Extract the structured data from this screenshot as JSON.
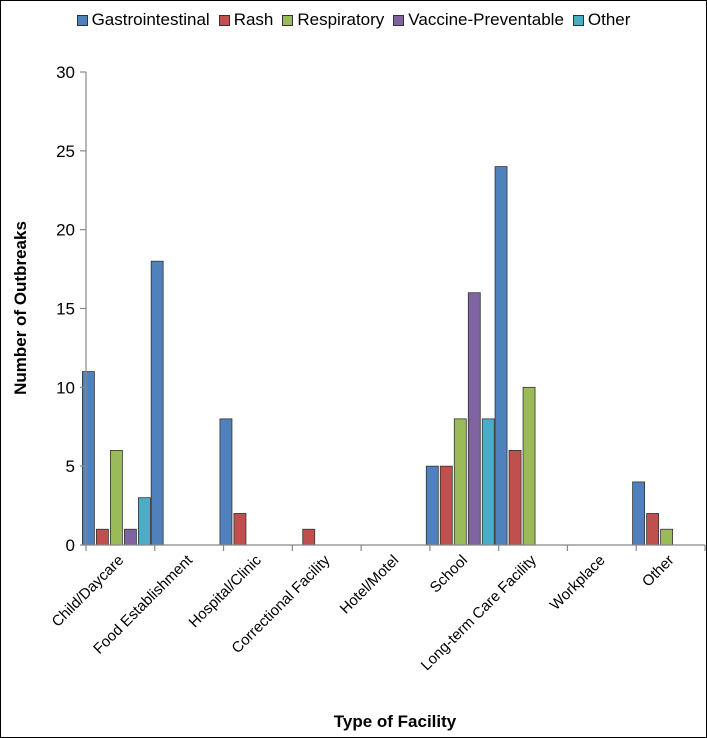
{
  "chart_data": {
    "type": "bar",
    "xlabel": "Type of Facility",
    "ylabel": "Number of Outbreaks",
    "ylim": [
      0,
      30
    ],
    "yticks": [
      "0",
      "5",
      "10",
      "15",
      "20",
      "25",
      "30"
    ],
    "grid": false,
    "legend_position": "top",
    "categories": [
      "Child/Daycare",
      "Food Establishment",
      "Hospital/Clinic",
      "Correctional Facility",
      "Hotel/Motel",
      "School",
      "Long-term Care Facility",
      "Workplace",
      "Other"
    ],
    "series": [
      {
        "name": "Gastrointestinal",
        "color": "#4f81bd",
        "values": [
          11,
          18,
          8,
          0,
          0,
          5,
          24,
          0,
          4
        ]
      },
      {
        "name": "Rash",
        "color": "#c0504d",
        "values": [
          1,
          0,
          2,
          1,
          0,
          5,
          6,
          0,
          2
        ]
      },
      {
        "name": "Respiratory",
        "color": "#9bbb59",
        "values": [
          6,
          0,
          0,
          0,
          0,
          8,
          10,
          0,
          1
        ]
      },
      {
        "name": "Vaccine-Preventable",
        "color": "#8064a2",
        "values": [
          1,
          0,
          0,
          0,
          0,
          16,
          0,
          0,
          0
        ]
      },
      {
        "name": "Other",
        "color": "#4bacc6",
        "values": [
          3,
          0,
          0,
          0,
          0,
          8,
          0,
          0,
          0
        ]
      }
    ]
  }
}
